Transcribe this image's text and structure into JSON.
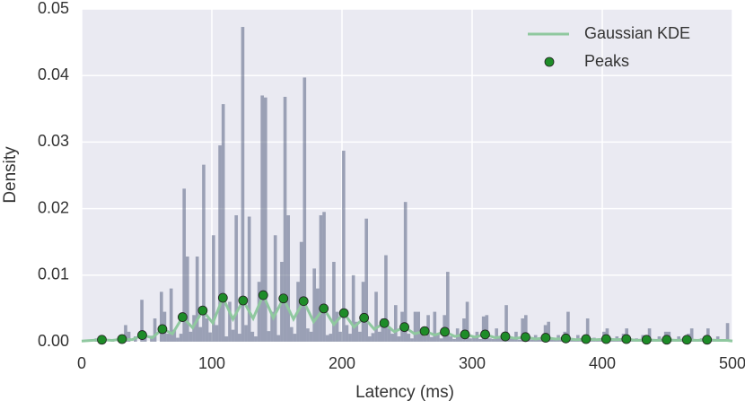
{
  "chart_data": {
    "type": "histogram",
    "x_label": "Latency (ms)",
    "y_label": "Density",
    "xlim": [
      0,
      500
    ],
    "ylim": [
      0,
      0.05
    ],
    "xticks": [
      0,
      100,
      200,
      300,
      400,
      500
    ],
    "yticks": [
      {
        "value": 0,
        "label": "0.00"
      },
      {
        "value": 0.01,
        "label": "0.01"
      },
      {
        "value": 0.02,
        "label": "0.02"
      },
      {
        "value": 0.03,
        "label": "0.03"
      },
      {
        "value": 0.04,
        "label": "0.04"
      },
      {
        "value": 0.05,
        "label": "0.05"
      }
    ],
    "grid": true,
    "legend": "upper right",
    "color": "#4a5578",
    "bins": [
      0,
      2.5,
      5,
      7.5,
      10,
      12.5,
      15,
      17.5,
      20,
      22.5,
      25,
      27.5,
      30,
      32.5,
      35,
      37.5,
      40,
      42.5,
      45,
      47.5,
      50,
      52.5,
      55,
      57.5,
      60,
      62.5,
      65,
      67.5,
      70,
      72.5,
      75,
      77.5,
      80,
      82.5,
      85,
      87.5,
      90,
      92.5,
      95,
      97.5,
      100,
      102.5,
      105,
      107.5,
      110,
      112.5,
      115,
      117.5,
      120,
      122.5,
      125,
      127.5,
      130,
      132.5,
      135,
      137.5,
      140,
      142.5,
      145,
      147.5,
      150,
      152.5,
      155,
      157.5,
      160,
      162.5,
      165,
      167.5,
      170,
      172.5,
      175,
      177.5,
      180,
      182.5,
      185,
      187.5,
      190,
      192.5,
      195,
      197.5,
      200,
      202.5,
      205,
      207.5,
      210,
      212.5,
      215,
      217.5,
      220,
      222.5,
      225,
      227.5,
      230,
      232.5,
      235,
      237.5,
      240,
      242.5,
      245,
      247.5,
      250,
      252.5,
      255,
      257.5,
      260,
      262.5,
      265,
      267.5,
      270,
      272.5,
      275,
      277.5,
      280,
      282.5,
      285,
      287.5,
      290,
      292.5,
      295,
      297.5,
      300,
      302.5,
      305,
      307.5,
      310,
      312.5,
      315,
      317.5,
      320,
      322.5,
      325,
      327.5,
      330,
      332.5,
      335,
      337.5,
      340,
      342.5,
      345,
      347.5,
      350,
      352.5,
      355,
      357.5,
      360,
      362.5,
      365,
      367.5,
      370,
      372.5,
      375,
      377.5,
      380,
      382.5,
      385,
      387.5,
      390,
      392.5,
      395,
      397.5,
      400,
      402.5,
      405,
      407.5,
      410,
      412.5,
      415,
      417.5,
      420,
      422.5,
      425,
      427.5,
      430,
      432.5,
      435,
      437.5,
      440,
      442.5,
      445,
      447.5,
      450,
      452.5,
      455,
      457.5,
      460,
      462.5,
      465,
      467.5,
      470,
      472.5,
      475,
      477.5,
      480,
      482.5,
      485,
      487.5,
      490,
      492.5,
      495,
      497.5,
      500
    ],
    "counts": [
      0,
      0,
      0,
      0,
      0.0005,
      0,
      0.0008,
      0,
      0,
      0.0004,
      0,
      0.0006,
      0,
      0.0025,
      0.0015,
      0,
      0.0008,
      0,
      0.0063,
      0.0012,
      0,
      0.0009,
      0.0035,
      0,
      0.0075,
      0.0045,
      0.0012,
      0.008,
      0.0018,
      0.0006,
      0.0012,
      0.023,
      0.0128,
      0.0015,
      0.004,
      0.0128,
      0.0022,
      0.0266,
      0.0035,
      0.0014,
      0.016,
      0.0025,
      0.0295,
      0.0357,
      0.0008,
      0.006,
      0.0018,
      0.019,
      0.0012,
      0.0473,
      0.0025,
      0.0188,
      0.0015,
      0.0008,
      0.009,
      0.037,
      0.0367,
      0.0016,
      0.0045,
      0.016,
      0.001,
      0.012,
      0.0368,
      0.019,
      0.0022,
      0.0012,
      0.009,
      0.015,
      0.0397,
      0.002,
      0.0015,
      0.011,
      0.008,
      0.019,
      0.0195,
      0.001,
      0.0012,
      0.012,
      0.0045,
      0.0015,
      0.0287,
      0.0025,
      0.0012,
      0.01,
      0.003,
      0.0015,
      0.009,
      0.0185,
      0.0008,
      0.0013,
      0.0075,
      0.0015,
      0.0035,
      0.013,
      0.002,
      0.0012,
      0.0055,
      0.0008,
      0.0045,
      0.021,
      0.0012,
      0.0005,
      0.0045,
      0.0045,
      0.0015,
      0.0008,
      0.004,
      0.0007,
      0.0045,
      0.0012,
      0.0005,
      0.004,
      0.0105,
      0.0008,
      0.0004,
      0.002,
      0.0008,
      0.0035,
      0.006,
      0.0005,
      0.0006,
      0.0015,
      0.0004,
      0.0038,
      0.004,
      0.0005,
      0.0004,
      0.002,
      0.0008,
      0.0005,
      0.0055,
      0.0006,
      0.0004,
      0.0015,
      0.0003,
      0.0035,
      0.004,
      0.0005,
      0.0003,
      0.001,
      0.0005,
      0.0003,
      0.0025,
      0.003,
      0.0004,
      0.0003,
      0.001,
      0.0003,
      0.0015,
      0.0045,
      0.0003,
      0.0004,
      0.001,
      0.0003,
      0.0003,
      0.0035,
      0.0003,
      0.0006,
      0.0003,
      0.0003,
      0.0015,
      0.002,
      0.0003,
      0.0003,
      0.0008,
      0.0003,
      0.0012,
      0.002,
      0.0003,
      0.0003,
      0.0005,
      0.0003,
      0.001,
      0.0003,
      0.002,
      0.0003,
      0.0003,
      0.0008,
      0.0003,
      0.0015,
      0.0015,
      0.0003,
      0.0003,
      0.0008,
      0.0003,
      0.0003,
      0.0012,
      0.002,
      0.0003,
      0.0003,
      0.0005,
      0.0003,
      0.002,
      0.0003,
      0.0003,
      0.0008,
      0.0003,
      0.0003,
      0.0028,
      0.0003
    ],
    "kde": {
      "name": "Gaussian KDE",
      "color": "#8fc89f",
      "x": [
        0,
        7.75,
        15.5,
        23.25,
        31,
        38.75,
        46.5,
        54.25,
        62,
        69.75,
        77.5,
        85.25,
        93,
        100.75,
        108.5,
        116.25,
        124,
        131.75,
        139.5,
        147.25,
        155,
        162.75,
        170.5,
        178.25,
        186,
        193.75,
        201.5,
        209.25,
        217,
        224.75,
        232.5,
        240.25,
        248,
        255.75,
        263.5,
        271.25,
        279,
        286.75,
        294.5,
        302.25,
        310,
        317.75,
        325.5,
        333.25,
        341,
        348.75,
        356.5,
        364.25,
        372,
        379.75,
        387.5,
        395.25,
        403,
        410.75,
        418.5,
        426.25,
        434,
        441.75,
        449.5,
        457.25,
        465,
        472.75,
        480.5,
        488.25,
        496,
        500
      ],
      "values": [
        0.0001,
        0.0002,
        0.0003,
        0.0002,
        0.0004,
        0.0003,
        0.001,
        0.0006,
        0.0019,
        0.0012,
        0.0037,
        0.0021,
        0.0047,
        0.0028,
        0.0066,
        0.0034,
        0.0062,
        0.0035,
        0.007,
        0.0036,
        0.0065,
        0.0034,
        0.0061,
        0.003,
        0.005,
        0.0026,
        0.0043,
        0.0022,
        0.0036,
        0.0019,
        0.0028,
        0.0015,
        0.0022,
        0.0012,
        0.0016,
        0.001,
        0.0015,
        0.0008,
        0.0011,
        0.0007,
        0.0011,
        0.0006,
        0.0008,
        0.0005,
        0.0007,
        0.0004,
        0.0006,
        0.0004,
        0.0005,
        0.0003,
        0.0004,
        0.0003,
        0.0004,
        0.0003,
        0.0004,
        0.0002,
        0.0003,
        0.0002,
        0.0003,
        0.0002,
        0.0003,
        0.0002,
        0.0003,
        0.0002,
        0.0002,
        0.0001
      ]
    },
    "peaks": {
      "name": "Peaks",
      "color": "#1e8c28",
      "x": [
        15.5,
        31,
        46.5,
        62,
        77.5,
        93,
        108.5,
        124,
        139.5,
        155,
        170.5,
        186,
        201.5,
        217,
        232.5,
        248,
        263.5,
        279,
        294.5,
        310,
        325.5,
        341,
        356.5,
        372,
        387.5,
        403,
        418.5,
        434,
        449.5,
        465,
        480.5
      ],
      "values": [
        0.0003,
        0.0004,
        0.001,
        0.0019,
        0.0037,
        0.0047,
        0.0066,
        0.0062,
        0.007,
        0.0065,
        0.0061,
        0.005,
        0.0043,
        0.0036,
        0.0028,
        0.0022,
        0.0016,
        0.0015,
        0.0011,
        0.0011,
        0.0008,
        0.0007,
        0.0006,
        0.0005,
        0.0004,
        0.0004,
        0.0004,
        0.0003,
        0.0003,
        0.0003,
        0.0003
      ]
    }
  }
}
